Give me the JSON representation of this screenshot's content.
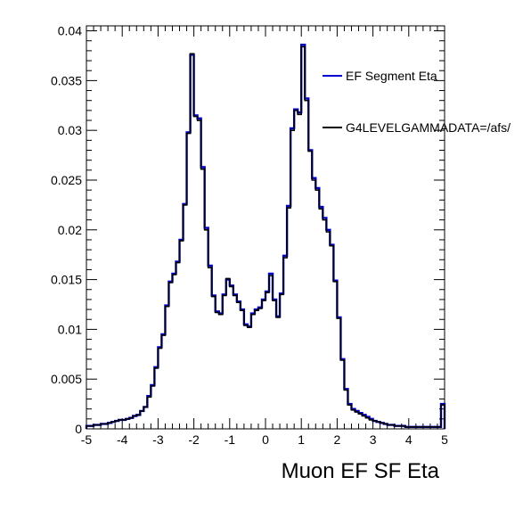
{
  "chart_data": {
    "type": "line",
    "subtype": "histogram-step",
    "title": "",
    "xlabel": "Muon EF SF Eta",
    "ylabel": "",
    "xlim": [
      -5,
      5
    ],
    "ylim": [
      0,
      0.0405
    ],
    "x_ticks": [
      "-5",
      "-4",
      "-3",
      "-2",
      "-1",
      "0",
      "1",
      "2",
      "3",
      "4",
      "5"
    ],
    "y_ticks": [
      "0",
      "0.005",
      "0.01",
      "0.015",
      "0.02",
      "0.025",
      "0.03",
      "0.035",
      "0.04"
    ],
    "bin_edges_range": [
      -5,
      5
    ],
    "bin_count": 100,
    "legend": [
      {
        "name": "EF Segment Eta",
        "color": "#0000cc"
      },
      {
        "name": "G4LEVELGAMMADATA=/afs/",
        "color": "#000000"
      }
    ],
    "series": [
      {
        "name": "EF Segment Eta",
        "color": "#0000cc",
        "values": [
          0.0003,
          0.0003,
          0.0004,
          0.0004,
          0.0005,
          0.0005,
          0.0006,
          0.0007,
          0.0008,
          0.0009,
          0.0009,
          0.001,
          0.0011,
          0.0013,
          0.0014,
          0.0018,
          0.0022,
          0.0033,
          0.0044,
          0.0062,
          0.0082,
          0.0095,
          0.0124,
          0.0148,
          0.0156,
          0.0168,
          0.019,
          0.0226,
          0.0298,
          0.0376,
          0.0315,
          0.0312,
          0.0263,
          0.0202,
          0.0164,
          0.0134,
          0.0118,
          0.0116,
          0.0135,
          0.015,
          0.0144,
          0.0135,
          0.0128,
          0.012,
          0.0105,
          0.0103,
          0.0116,
          0.012,
          0.0122,
          0.013,
          0.0138,
          0.0156,
          0.013,
          0.0113,
          0.0136,
          0.0174,
          0.0224,
          0.0302,
          0.0321,
          0.0318,
          0.0386,
          0.0332,
          0.028,
          0.0252,
          0.0242,
          0.0223,
          0.0212,
          0.02,
          0.0185,
          0.0149,
          0.0112,
          0.007,
          0.004,
          0.0025,
          0.002,
          0.0018,
          0.0016,
          0.0014,
          0.0012,
          0.001,
          0.0008,
          0.0007,
          0.0006,
          0.0005,
          0.0004,
          0.0004,
          0.0003,
          0.0003,
          0.0003,
          0.0002,
          0.0002,
          0.0002,
          0.0002,
          0.0002,
          0.0002,
          0.0002,
          0.0002,
          0.0002,
          0.0002,
          0.0025
        ]
      },
      {
        "name": "G4LEVELGAMMADATA=/afs/",
        "color": "#000000",
        "values": [
          0.0003,
          0.0003,
          0.0004,
          0.0004,
          0.0005,
          0.0005,
          0.0006,
          0.0007,
          0.0008,
          0.0009,
          0.0009,
          0.001,
          0.0011,
          0.0013,
          0.0014,
          0.0018,
          0.0022,
          0.0032,
          0.0043,
          0.0061,
          0.0081,
          0.0094,
          0.0123,
          0.0147,
          0.0155,
          0.0167,
          0.0189,
          0.0225,
          0.0297,
          0.0377,
          0.0314,
          0.031,
          0.0261,
          0.02,
          0.0162,
          0.0133,
          0.0117,
          0.0115,
          0.0134,
          0.0151,
          0.0143,
          0.0134,
          0.0127,
          0.0119,
          0.0104,
          0.0102,
          0.0115,
          0.0119,
          0.0121,
          0.0129,
          0.0137,
          0.0154,
          0.0129,
          0.0112,
          0.0135,
          0.0172,
          0.0222,
          0.03,
          0.032,
          0.0316,
          0.0384,
          0.033,
          0.0279,
          0.025,
          0.024,
          0.0221,
          0.021,
          0.0198,
          0.0184,
          0.0148,
          0.0111,
          0.0069,
          0.0039,
          0.0024,
          0.0019,
          0.0017,
          0.0015,
          0.0013,
          0.0011,
          0.0009,
          0.0008,
          0.0007,
          0.0006,
          0.0005,
          0.0004,
          0.0004,
          0.0003,
          0.0003,
          0.0003,
          0.0002,
          0.0002,
          0.0002,
          0.0002,
          0.0002,
          0.0002,
          0.0002,
          0.0002,
          0.0002,
          0.0002,
          0.0024
        ]
      }
    ]
  }
}
